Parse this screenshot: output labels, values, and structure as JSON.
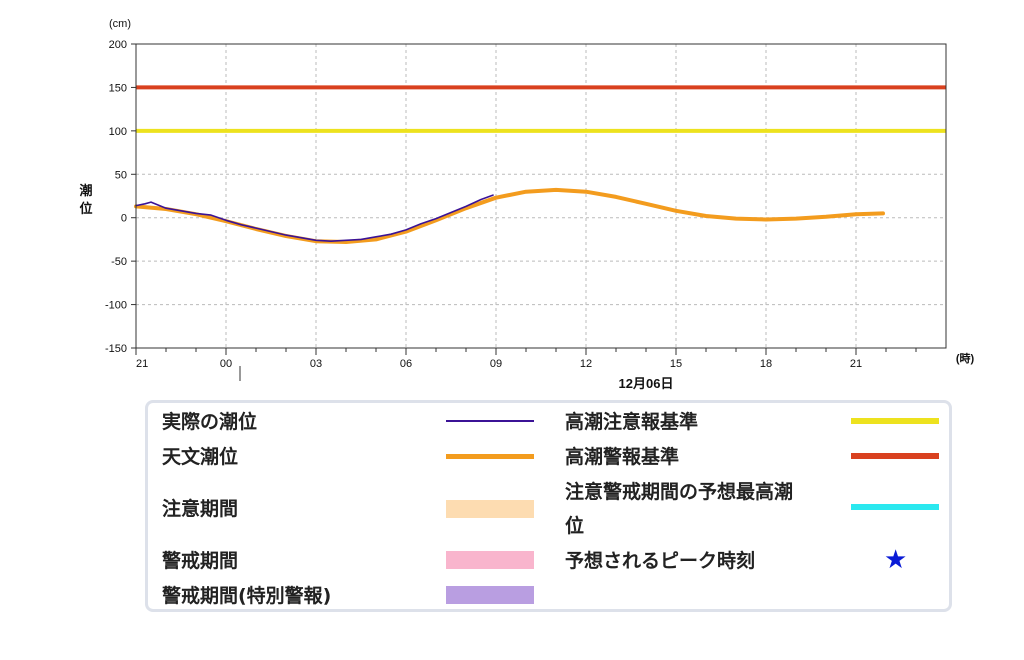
{
  "chart_data": {
    "type": "line",
    "yunit": "(cm)",
    "ylabel": "潮位",
    "xunit": "(時)",
    "date_label": "12月06日",
    "ylim": [
      -150,
      200
    ],
    "yticks": [
      200,
      150,
      100,
      50,
      0,
      -50,
      -100,
      -150
    ],
    "xlim_hours": [
      -3,
      24
    ],
    "xticks": [
      {
        "h": -3,
        "label": "21"
      },
      {
        "h": 0,
        "label": "00"
      },
      {
        "h": 3,
        "label": "03"
      },
      {
        "h": 6,
        "label": "06"
      },
      {
        "h": 9,
        "label": "09"
      },
      {
        "h": 12,
        "label": "12"
      },
      {
        "h": 15,
        "label": "15"
      },
      {
        "h": 18,
        "label": "18"
      },
      {
        "h": 21,
        "label": "21"
      }
    ],
    "grid": true,
    "series": [
      {
        "name": "天文潮位",
        "color": "#f39c1e",
        "x": [
          -3,
          -2,
          -1,
          0,
          1,
          2,
          3,
          4,
          5,
          6,
          7,
          8,
          9,
          10,
          11,
          12,
          13,
          14,
          15,
          16,
          17,
          18,
          19,
          20,
          21,
          21.9
        ],
        "y": [
          13,
          10,
          4,
          -4,
          -13,
          -21,
          -27,
          -28,
          -25,
          -16,
          -3,
          11,
          23,
          30,
          32,
          30,
          24,
          16,
          8,
          2,
          -1,
          -2,
          -1,
          1,
          4,
          5
        ]
      },
      {
        "name": "実際の潮位",
        "color": "#3b1396",
        "x": [
          -3,
          -2.7,
          -2.5,
          -2,
          -1.5,
          -1,
          -0.5,
          0,
          0.5,
          1,
          1.5,
          2,
          2.5,
          3,
          3.5,
          4,
          4.5,
          5,
          5.5,
          6,
          6.5,
          7,
          7.5,
          8,
          8.5,
          8.9
        ],
        "y": [
          14,
          16,
          18,
          11,
          8,
          5,
          3,
          -3,
          -8,
          -12,
          -16,
          -20,
          -23,
          -26,
          -27,
          -26,
          -25,
          -22,
          -19,
          -14,
          -7,
          -1,
          6,
          13,
          21,
          26
        ]
      }
    ],
    "reference_lines": [
      {
        "name": "高潮注意報基準",
        "value": 100,
        "color": "#ede21e"
      },
      {
        "name": "高潮警報基準",
        "value": 150,
        "color": "#d9411f"
      }
    ]
  },
  "legend": {
    "items": [
      {
        "label": "実際の潮位",
        "kind": "line",
        "color": "#3b1396"
      },
      {
        "label": "天文潮位",
        "kind": "line",
        "color": "#f39c1e"
      },
      {
        "label": "注意期間",
        "kind": "band",
        "color": "#fddcb1"
      },
      {
        "label": "警戒期間",
        "kind": "band",
        "color": "#f9b5cd"
      },
      {
        "label": "警戒期間(特別警報)",
        "kind": "band",
        "color": "#b99ee1"
      },
      {
        "label": "高潮注意報基準",
        "kind": "line",
        "color": "#ede21e"
      },
      {
        "label": "高潮警報基準",
        "kind": "line",
        "color": "#d9411f"
      },
      {
        "label": "注意警戒期間の予想最高潮",
        "label2": "位",
        "kind": "line",
        "color": "#2ae8ef"
      },
      {
        "label": "予想されるピーク時刻",
        "kind": "star",
        "color": "#0a1bd6",
        "symbol": "★"
      }
    ]
  }
}
